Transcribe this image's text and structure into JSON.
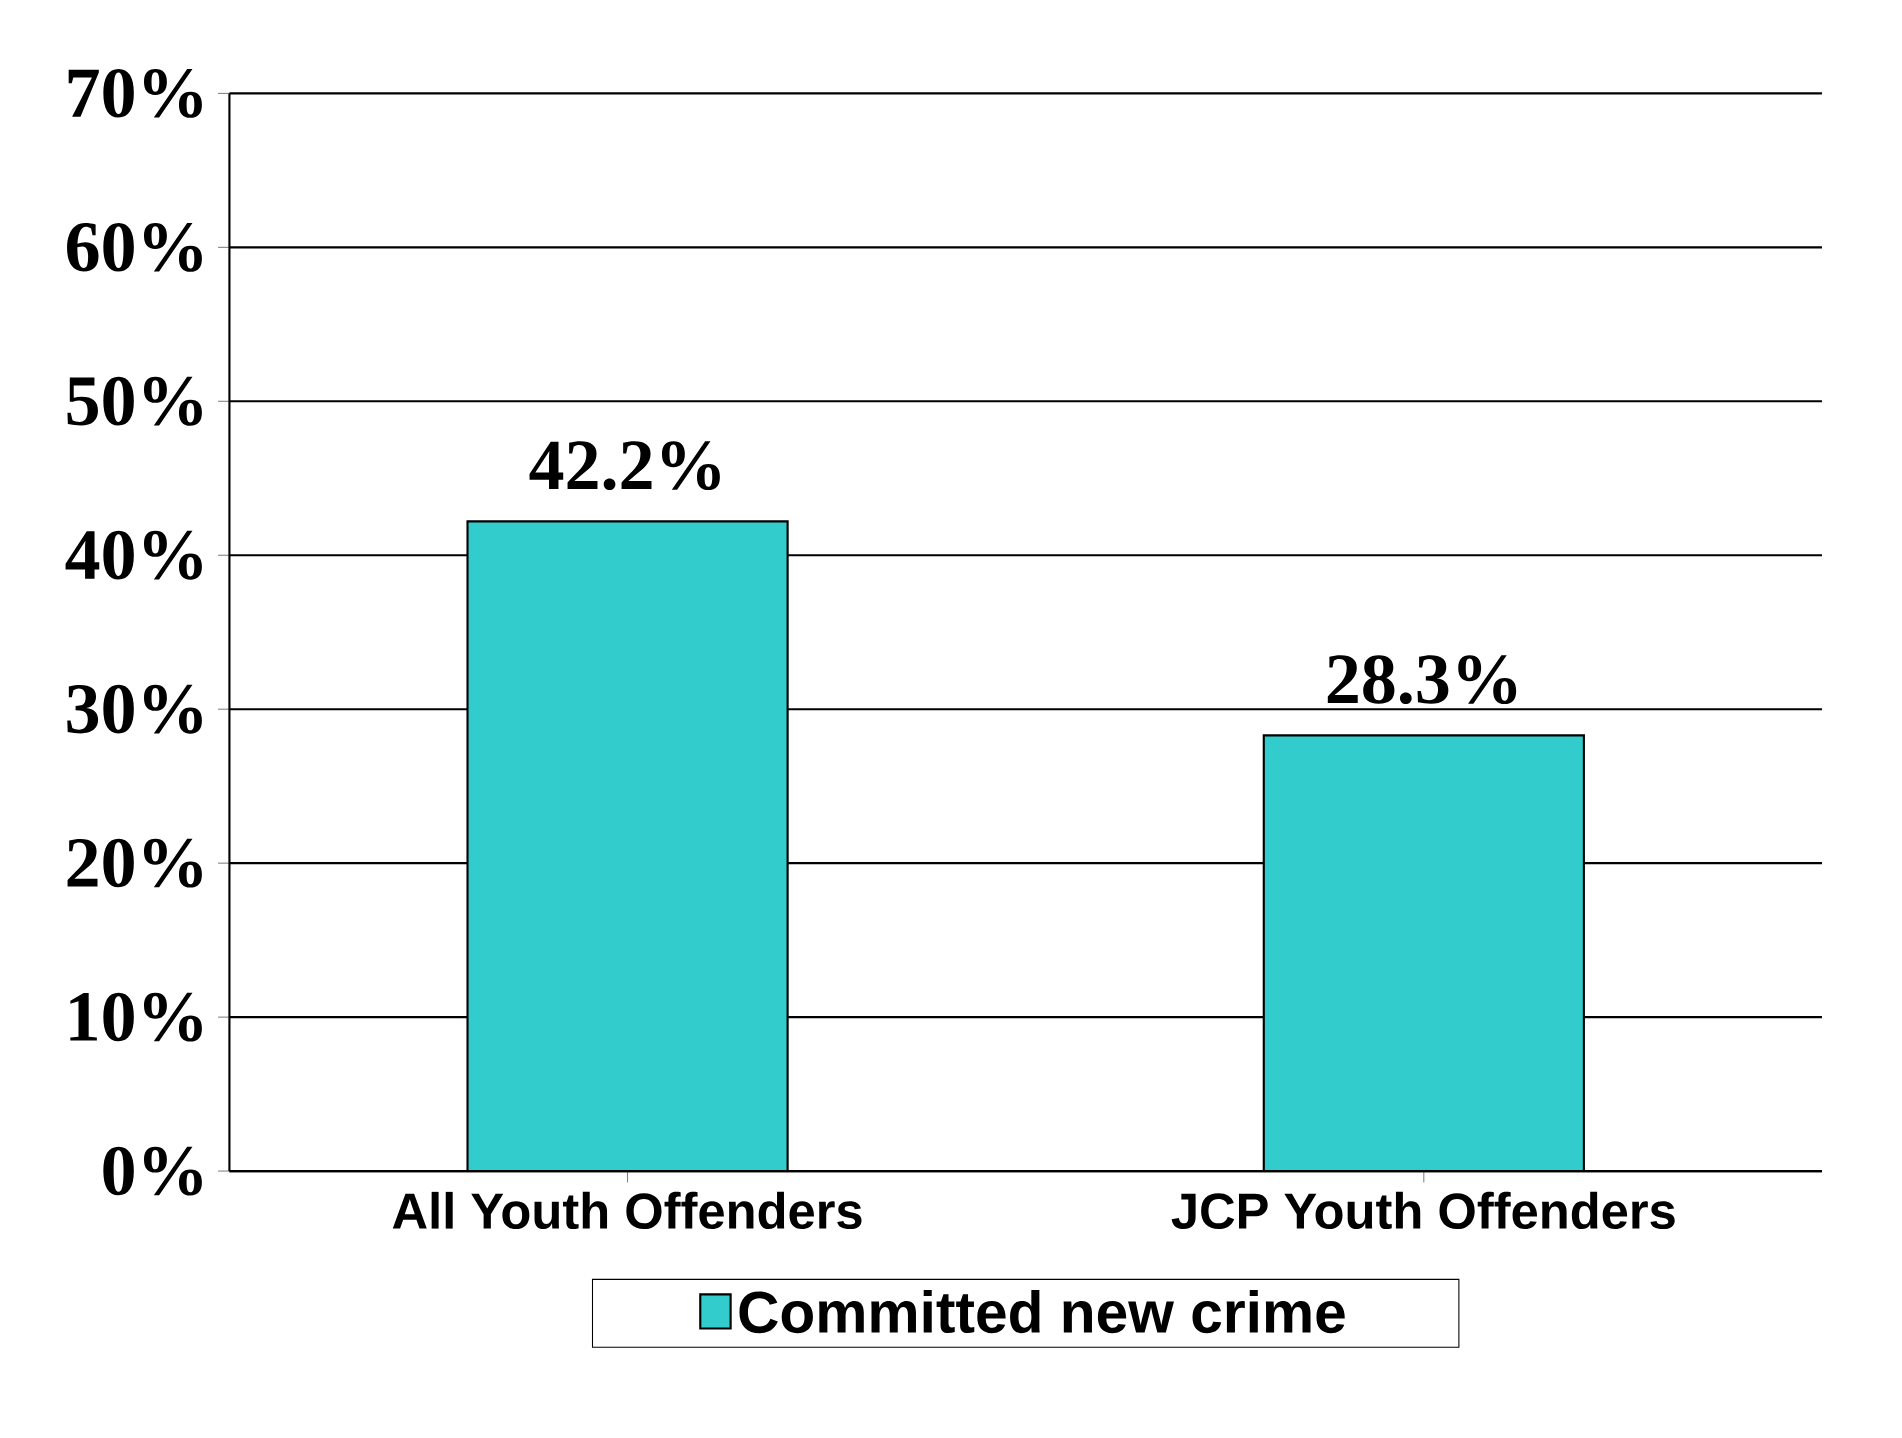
{
  "chart_data": {
    "type": "bar",
    "categories": [
      "All Youth Offenders",
      "JCP Youth Offenders"
    ],
    "series": [
      {
        "name": "Committed new crime",
        "color": "#33cccc",
        "values": [
          42.2,
          28.3
        ],
        "value_labels": [
          "42.2%",
          "28.3%"
        ]
      }
    ],
    "ylim": [
      0,
      70
    ],
    "yticks": [
      {
        "value": 0,
        "label": "0%"
      },
      {
        "value": 10,
        "label": "10%"
      },
      {
        "value": 20,
        "label": "20%"
      },
      {
        "value": 30,
        "label": "30%"
      },
      {
        "value": 40,
        "label": "40%"
      },
      {
        "value": 50,
        "label": "50%"
      },
      {
        "value": 60,
        "label": "60%"
      },
      {
        "value": 70,
        "label": "70%"
      }
    ],
    "grid": "y",
    "legend": "bottom"
  }
}
